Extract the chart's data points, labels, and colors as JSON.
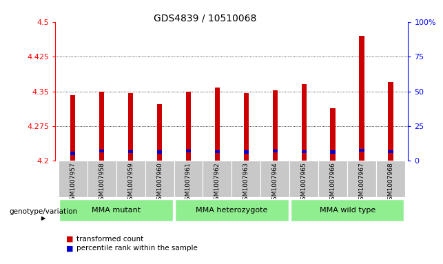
{
  "title": "GDS4839 / 10510068",
  "samples": [
    "GSM1007957",
    "GSM1007958",
    "GSM1007959",
    "GSM1007960",
    "GSM1007961",
    "GSM1007962",
    "GSM1007963",
    "GSM1007964",
    "GSM1007965",
    "GSM1007966",
    "GSM1007967",
    "GSM1007968"
  ],
  "red_values": [
    4.342,
    4.35,
    4.347,
    4.323,
    4.35,
    4.358,
    4.347,
    4.352,
    4.365,
    4.314,
    4.47,
    4.37
  ],
  "blue_values": [
    4.213,
    4.218,
    4.217,
    4.216,
    4.218,
    4.217,
    4.216,
    4.218,
    4.217,
    4.216,
    4.22,
    4.217
  ],
  "y_min": 4.2,
  "y_max": 4.5,
  "y_ticks_left": [
    4.2,
    4.275,
    4.35,
    4.425,
    4.5
  ],
  "y_ticks_right": [
    0,
    25,
    50,
    75,
    100
  ],
  "y_ticks_right_labels": [
    "0",
    "25",
    "50",
    "75",
    "100%"
  ],
  "groups": [
    {
      "label": "MMA mutant",
      "start": 0,
      "end": 3
    },
    {
      "label": "MMA heterozygote",
      "start": 4,
      "end": 7
    },
    {
      "label": "MMA wild type",
      "start": 8,
      "end": 11
    }
  ],
  "bar_color_red": "#cc0000",
  "bar_color_blue": "#0000cc",
  "bar_width": 0.18,
  "genotype_label": "genotype/variation",
  "legend_red": "transformed count",
  "legend_blue": "percentile rank within the sample",
  "tick_label_area_color": "#c8c8c8",
  "group_color": "#90EE90",
  "title_fontsize": 10
}
